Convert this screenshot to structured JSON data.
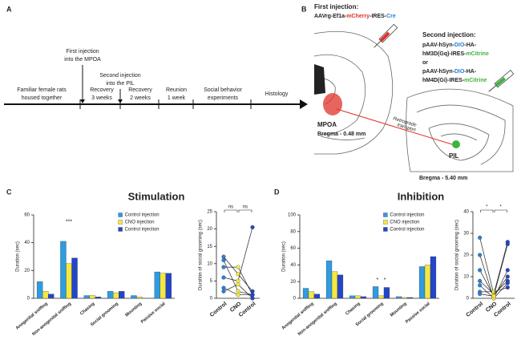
{
  "panel_a": {
    "label": "A",
    "events": [
      [
        "First injection",
        "into the MPOA"
      ],
      [
        "Second injection",
        "into the PIL"
      ]
    ],
    "stages": [
      [
        "Familiar female rats",
        "housed together"
      ],
      [
        "Recovery",
        "3 weeks"
      ],
      [
        "Recovery",
        "2 weeks"
      ],
      [
        "Reunion",
        "1 week"
      ],
      [
        "Social behavior",
        "experiments"
      ],
      [
        "Histology"
      ]
    ]
  },
  "panel_b": {
    "label": "B",
    "first_heading": "First injection:",
    "first_construct": [
      {
        "text": "AAVrg-Ef1a-",
        "color": "#222222"
      },
      {
        "text": "mCherry",
        "color": "#e0312a"
      },
      {
        "text": "-IRES-",
        "color": "#222222"
      },
      {
        "text": "Cre",
        "color": "#2b7fd4"
      }
    ],
    "second_heading": "Second injection:",
    "second_lines": [
      [
        {
          "text": "pAAV-hSyn-",
          "color": "#222222"
        },
        {
          "text": "DIO",
          "color": "#2b7fd4"
        },
        {
          "text": "-HA-",
          "color": "#222222"
        }
      ],
      [
        {
          "text": "hM3D(Gq)-IRES-",
          "color": "#222222"
        },
        {
          "text": "mCitrine",
          "color": "#3cb43c"
        }
      ],
      [
        {
          "text": "or",
          "color": "#222222"
        }
      ],
      [
        {
          "text": "pAAV-hSyn-",
          "color": "#222222"
        },
        {
          "text": "DIO",
          "color": "#2b7fd4"
        },
        {
          "text": "-HA-",
          "color": "#222222"
        }
      ],
      [
        {
          "text": "hM4D(Gi)-IRES-",
          "color": "#222222"
        },
        {
          "text": "mCitrine",
          "color": "#3cb43c"
        }
      ]
    ],
    "region_1": "MPOA",
    "bregma_1": "Bregma - 0.48 mm",
    "transport": [
      "Retrograde",
      "transport"
    ],
    "region_2": "PIL",
    "bregma_2": "Bregma - 5.40 mm"
  },
  "chart_data": [
    {
      "type": "bar",
      "panel": "C",
      "title": "Stimulation",
      "ylabel": "Duration (sec)",
      "categories": [
        "Anogenital sniffing",
        "Non-anogenital sniffing",
        "Chasing",
        "Social grooming",
        "Mounting",
        "Passive social"
      ],
      "series": [
        {
          "name": "Control injection",
          "color": "#2f9be0",
          "values": [
            12,
            41,
            2,
            5,
            2,
            19
          ]
        },
        {
          "name": "CNO injection",
          "color": "#f4e842",
          "values": [
            5,
            25,
            2,
            4,
            1,
            18
          ]
        },
        {
          "name": "Control injection",
          "color": "#2346c8",
          "values": [
            3,
            29,
            1,
            5,
            0,
            18
          ]
        }
      ],
      "ylim": [
        0,
        60
      ],
      "yticks": [
        0,
        20,
        40,
        60
      ],
      "annotations": [
        "***"
      ]
    },
    {
      "type": "line",
      "ylabel": "Duration of social grooming (sec)",
      "categories": [
        "Control",
        "CNO",
        "Control"
      ],
      "point_colors": [
        "#2b7fd4",
        "#f4e842",
        "#2346c8"
      ],
      "series": [
        {
          "values": [
            12,
            7,
            2
          ]
        },
        {
          "values": [
            11,
            2,
            1
          ]
        },
        {
          "values": [
            9,
            9,
            1
          ]
        },
        {
          "values": [
            6,
            5,
            20.5
          ]
        },
        {
          "values": [
            3,
            1,
            1
          ]
        },
        {
          "values": [
            2,
            4,
            0
          ]
        }
      ],
      "ylim": [
        0,
        25
      ],
      "yticks": [
        0,
        5,
        10,
        15,
        20,
        25
      ],
      "annotations": [
        "ns",
        "ns"
      ]
    },
    {
      "type": "bar",
      "panel": "D",
      "title": "Inhibition",
      "ylabel": "Duration (sec)",
      "categories": [
        "Anogenital sniffing",
        "Non-anogenital sniffing",
        "Chasing",
        "Social grooming",
        "Mounting",
        "Passive social"
      ],
      "series": [
        {
          "name": "Control injection",
          "color": "#2f9be0",
          "values": [
            12,
            45,
            3,
            14,
            2,
            38
          ]
        },
        {
          "name": "CNO injection",
          "color": "#f4e842",
          "values": [
            8,
            32,
            3,
            3,
            1,
            40
          ]
        },
        {
          "name": "Control injection",
          "color": "#2346c8",
          "values": [
            5,
            28,
            2,
            13,
            1,
            50
          ]
        }
      ],
      "ylim": [
        0,
        100
      ],
      "yticks": [
        0,
        20,
        40,
        60,
        80,
        100
      ],
      "annotations": [
        "*",
        "*"
      ]
    },
    {
      "type": "line",
      "ylabel": "Duration of social grooming (sec)",
      "categories": [
        "Control",
        "CNO",
        "Control"
      ],
      "point_colors": [
        "#2b7fd4",
        "#f4e842",
        "#2346c8"
      ],
      "series": [
        {
          "values": [
            28,
            2,
            26
          ]
        },
        {
          "values": [
            20,
            0,
            13
          ]
        },
        {
          "values": [
            13,
            1,
            10
          ]
        },
        {
          "values": [
            8,
            2,
            8
          ]
        },
        {
          "values": [
            6,
            0,
            7
          ]
        },
        {
          "values": [
            3,
            3,
            5
          ]
        },
        {
          "values": [
            2,
            1,
            25
          ]
        }
      ],
      "ylim": [
        0,
        40
      ],
      "yticks": [
        0,
        10,
        20,
        30,
        40
      ],
      "annotations": [
        "*",
        "*"
      ]
    }
  ]
}
